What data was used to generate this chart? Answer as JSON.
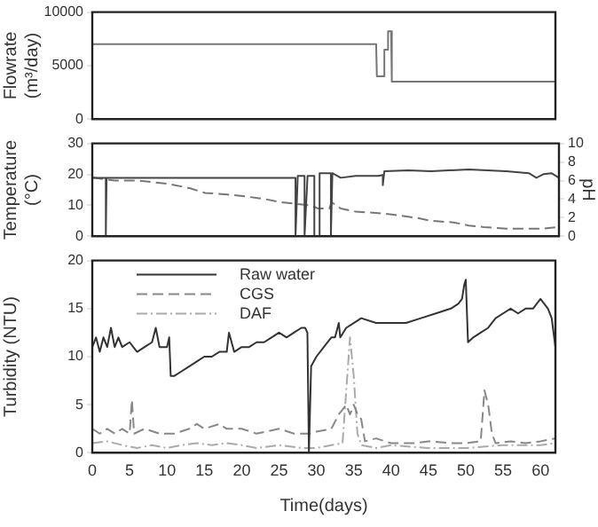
{
  "chart_data": [
    {
      "type": "line",
      "ylabel": "Flowrate\n(m³/day)",
      "xlim": [
        0,
        62
      ],
      "xticks": [
        0,
        5,
        10,
        15,
        20,
        25,
        30,
        35,
        40,
        45,
        50,
        55,
        60
      ],
      "ylim": [
        0,
        10000
      ],
      "yticks": [
        0,
        5000,
        10000
      ],
      "tick_labels": "y",
      "grid": false,
      "legend": false,
      "series": [
        {
          "color": "#777777",
          "line_style": "solid",
          "x": [
            0,
            38,
            38.1,
            39,
            39.1,
            39.5,
            39.6,
            40,
            40.1,
            62
          ],
          "values": [
            7000,
            7000,
            4000,
            4000,
            6500,
            6500,
            8200,
            8200,
            3500,
            3500
          ]
        }
      ]
    },
    {
      "type": "line",
      "ylabel": "Temperature\n(°C)",
      "y2label": "pH",
      "xlim": [
        0,
        62
      ],
      "xticks": [
        0,
        5,
        10,
        15,
        20,
        25,
        30,
        35,
        40,
        45,
        50,
        55,
        60
      ],
      "ylim": [
        0,
        30
      ],
      "yticks": [
        0,
        10,
        20,
        30
      ],
      "y2lim": [
        0,
        10
      ],
      "y2ticks": [
        0,
        2,
        4,
        6,
        8,
        10
      ],
      "tick_labels": "y",
      "grid": false,
      "legend": false,
      "series": [
        {
          "color": "#444444",
          "axis": "y2",
          "line_style": "solid",
          "x": [
            0,
            1.8,
            1.8,
            1.9,
            27,
            27,
            27.3,
            28.2,
            28.2,
            28.6,
            29.5,
            29.5,
            29.8,
            30.2,
            30.2,
            31.7,
            31.7,
            31.9,
            33,
            35,
            38,
            38.6,
            38.6,
            38.8,
            42,
            45,
            50,
            55,
            58,
            59,
            60,
            61,
            62
          ],
          "values": [
            6.3,
            6.3,
            0,
            6.3,
            6.3,
            0,
            6.5,
            6.5,
            0,
            6.5,
            6.5,
            0,
            null,
            0,
            6.8,
            6.8,
            0,
            6.8,
            6.3,
            6.5,
            6.5,
            6.6,
            5.5,
            7,
            7.1,
            7,
            7.2,
            7,
            6.8,
            6.3,
            6.7,
            6.8,
            6.3
          ]
        },
        {
          "color": "#777777",
          "axis": "y",
          "line_style": "dashed",
          "x": [
            0,
            3,
            6,
            10,
            13,
            15,
            18,
            20,
            23,
            25,
            27,
            29,
            30,
            31.5,
            31.8,
            33,
            35,
            38,
            40,
            43,
            45,
            48,
            50,
            52,
            55,
            58,
            60,
            62
          ],
          "values": [
            19,
            18,
            18,
            17,
            15.5,
            14,
            13.5,
            13,
            12,
            11,
            10.5,
            10,
            9,
            9,
            11,
            9,
            8,
            7.5,
            7,
            6,
            5,
            4.5,
            3.5,
            3,
            2.5,
            2.5,
            2.5,
            3
          ]
        }
      ]
    },
    {
      "type": "line",
      "xlabel": "Time(days)",
      "ylabel": "Turbidity (NTU)",
      "xlim": [
        0,
        62
      ],
      "xticks": [
        0,
        5,
        10,
        15,
        20,
        25,
        30,
        35,
        40,
        45,
        50,
        55,
        60
      ],
      "ylim": [
        0,
        20
      ],
      "yticks": [
        0,
        5,
        10,
        15,
        20
      ],
      "grid": false,
      "legend": "top left",
      "series": [
        {
          "name": "Raw water",
          "color": "#333333",
          "line_style": "solid",
          "x": [
            0,
            0.5,
            1,
            1.5,
            2,
            2.5,
            3,
            3.5,
            4,
            5,
            6,
            7,
            8,
            8.5,
            9,
            10,
            10.3,
            10.5,
            11,
            12,
            13,
            14,
            15,
            16,
            17,
            18,
            18.3,
            19,
            20,
            21,
            22,
            23,
            24,
            25,
            26,
            27,
            28,
            28.5,
            28.8,
            29,
            29.3,
            30,
            31,
            32,
            32.5,
            33,
            33.2,
            34,
            35,
            36,
            38,
            40,
            42,
            44,
            46,
            48,
            49,
            49.5,
            49.8,
            50,
            50.3,
            51,
            52,
            53,
            54,
            55,
            56,
            57,
            58,
            59,
            60,
            61,
            61.5,
            62
          ],
          "values": [
            11,
            12,
            10.5,
            12,
            11,
            13,
            11,
            12,
            11,
            11.5,
            10.5,
            11,
            11.5,
            13,
            11,
            11,
            12,
            8,
            8,
            8.5,
            9,
            9.5,
            10,
            10,
            10.5,
            10.5,
            12.5,
            10.5,
            11,
            11,
            11.5,
            11.5,
            12,
            12.5,
            12,
            12.5,
            13,
            13,
            12.5,
            0,
            9,
            10,
            11,
            12,
            12,
            13.5,
            12,
            13,
            13.5,
            14,
            13.5,
            13.5,
            13.5,
            14,
            14.5,
            15,
            15.5,
            16,
            17.5,
            18,
            11.5,
            12,
            12.5,
            13,
            14,
            14.5,
            15,
            14.5,
            15,
            15,
            16,
            15,
            14,
            11
          ]
        },
        {
          "name": "CGS",
          "color": "#888888",
          "line_style": "dashed",
          "x": [
            0,
            1,
            2,
            3,
            4,
            5,
            5.3,
            5.6,
            7,
            9,
            11,
            13,
            14,
            15,
            17,
            18,
            20,
            22,
            25,
            27,
            29,
            30,
            32,
            33,
            34,
            34.5,
            35,
            35.5,
            36,
            36.5,
            38,
            40,
            43,
            45,
            48,
            50,
            52,
            52.5,
            53,
            53.5,
            54,
            56,
            58,
            60,
            62
          ],
          "values": [
            2.5,
            2,
            2.5,
            2,
            2.5,
            2,
            5.5,
            2,
            2.5,
            2,
            2,
            2.5,
            3,
            2.5,
            3,
            2.5,
            2.5,
            2,
            2.5,
            2,
            2,
            2.2,
            2.5,
            4,
            5,
            4,
            5,
            4,
            3.5,
            1.2,
            1.5,
            1,
            1,
            1.2,
            1,
            1,
            1.2,
            6.5,
            5,
            2,
            1,
            1.2,
            1,
            1.2,
            1.5
          ]
        },
        {
          "name": "DAF",
          "color": "#aaaaaa",
          "line_style": "dashdot",
          "x": [
            0,
            2,
            4,
            6,
            8,
            10,
            12,
            14,
            16,
            18,
            20,
            22,
            25,
            28,
            30,
            32,
            33.5,
            34.5,
            35,
            35.5,
            36,
            38,
            40,
            45,
            50,
            55,
            60,
            62
          ],
          "values": [
            1,
            1.2,
            0.8,
            0.5,
            0.8,
            0.5,
            0.8,
            1,
            0.8,
            1,
            0.8,
            0.5,
            0.8,
            0.5,
            0.5,
            0.8,
            1,
            12,
            8,
            2,
            0.8,
            0.5,
            0.8,
            0.5,
            0.5,
            0.8,
            0.8,
            1
          ]
        }
      ]
    }
  ]
}
